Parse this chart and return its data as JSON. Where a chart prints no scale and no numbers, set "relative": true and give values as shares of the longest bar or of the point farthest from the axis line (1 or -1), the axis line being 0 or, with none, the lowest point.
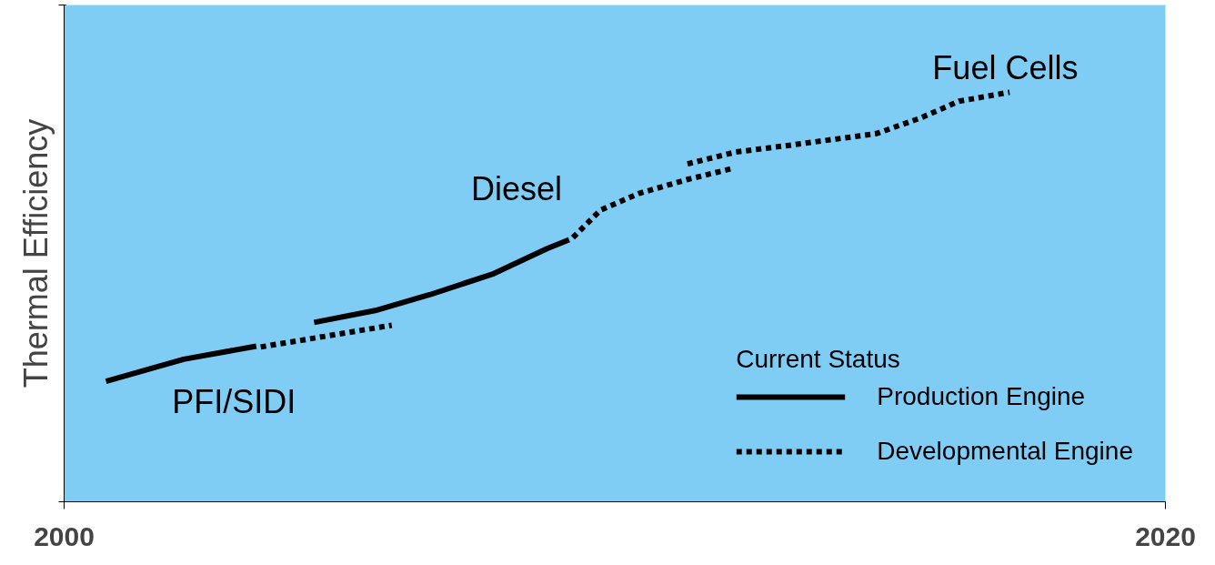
{
  "chart_data": {
    "type": "line",
    "relative": true,
    "ylabel": "Thermal Efficiency",
    "legend_title": "Current Status",
    "legend": "bottom right",
    "marker": "none",
    "xlim": [
      2000,
      2020
    ],
    "xticks": [
      2000,
      2020
    ],
    "series": [
      {
        "name": "Production Engine",
        "color": "#000000",
        "line_style": "solid",
        "x": [
          2000.76,
          2002.17,
          2003.49
        ],
        "values": [
          0.294,
          0.348,
          0.38
        ]
      },
      {
        "name": "Developmental Engine",
        "color": "#000000",
        "line_style": "dotted",
        "x": [
          2003.57,
          2005.95
        ],
        "values": [
          0.378,
          0.431
        ]
      },
      {
        "color": "#000000",
        "line_style": "solid",
        "x": [
          2004.54,
          2005.65,
          2006.65,
          2007.8,
          2008.77,
          2009.17
        ],
        "values": [
          0.438,
          0.467,
          0.506,
          0.557,
          0.618,
          0.64
        ]
      },
      {
        "color": "#000000",
        "line_style": "dotted",
        "x": [
          2009.24,
          2009.74,
          2010.44,
          2011.32,
          2012.11
        ],
        "values": [
          0.645,
          0.712,
          0.753,
          0.787,
          0.813
        ]
      },
      {
        "color": "#000000",
        "line_style": "dotted",
        "x": [
          2011.32,
          2012.2,
          2013.26,
          2014.75,
          2015.55,
          2016.25,
          2017.17
        ],
        "values": [
          0.825,
          0.854,
          0.872,
          0.899,
          0.937,
          0.978,
          1.0
        ]
      }
    ],
    "annotations": [
      "PFI/SIDI",
      "Diesel",
      "Fuel Cells"
    ]
  }
}
